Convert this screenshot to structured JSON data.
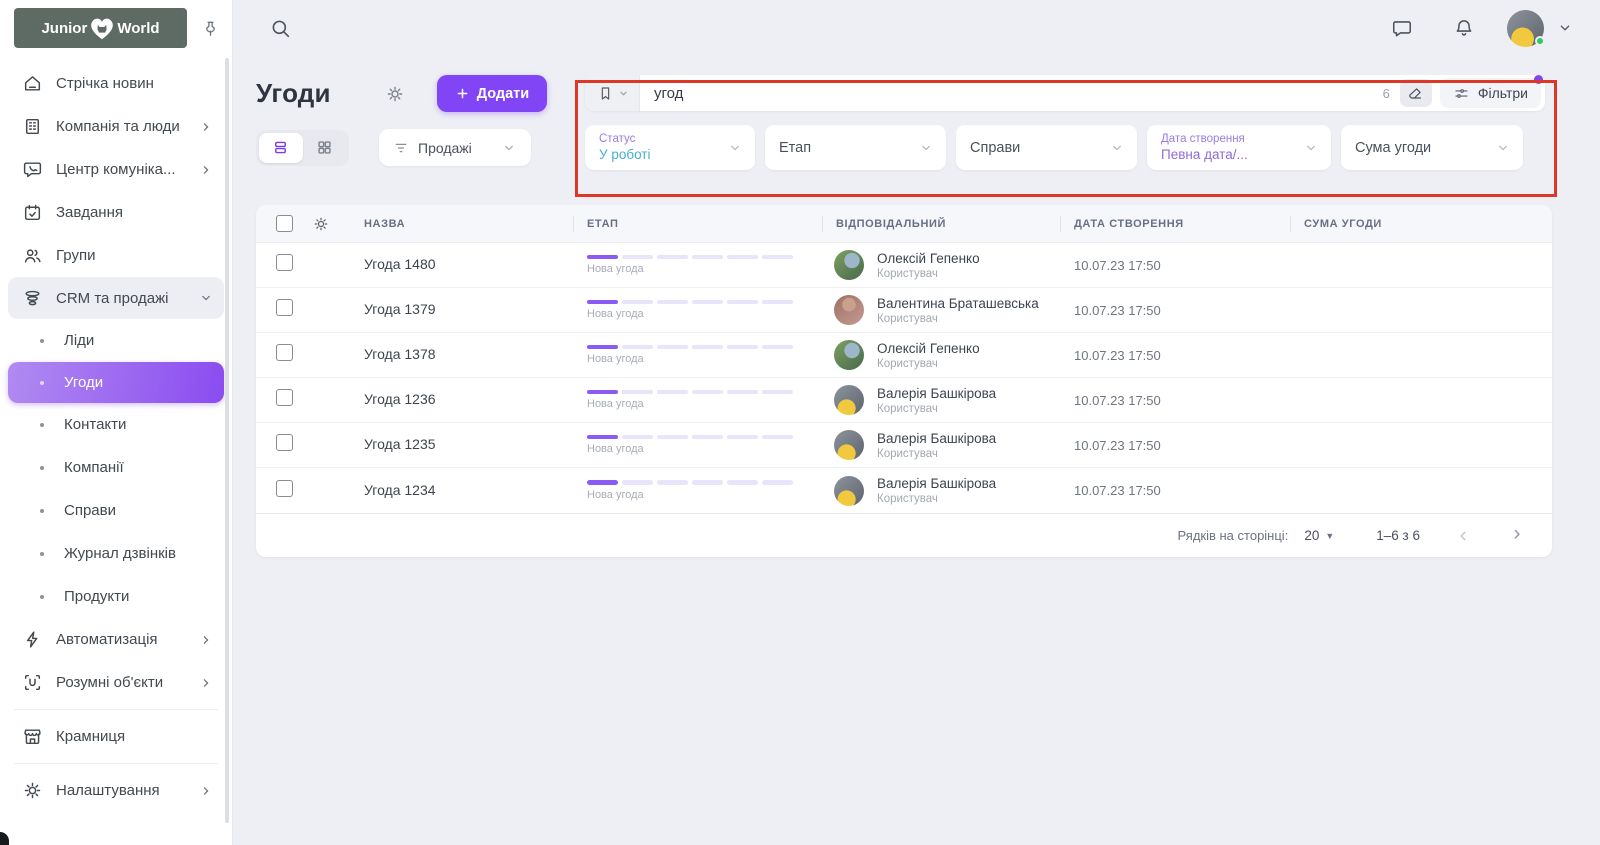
{
  "app": {
    "logo_left": "Junior",
    "logo_right": "World"
  },
  "sidebar": {
    "items": [
      {
        "name": "news-feed",
        "icon": "home-icon",
        "label": "Стрічка новин"
      },
      {
        "name": "company-people",
        "icon": "building-icon",
        "label": "Компанія та люди",
        "chevron": "right"
      },
      {
        "name": "communication-center",
        "icon": "chat-phone-icon",
        "label": "Центр комуніка...",
        "chevron": "right"
      },
      {
        "name": "tasks",
        "icon": "calendar-check-icon",
        "label": "Завдання"
      },
      {
        "name": "groups",
        "icon": "people-icon",
        "label": "Групи"
      },
      {
        "name": "crm-sales",
        "icon": "funnel-stack-icon",
        "label": "CRM та продажі",
        "chevron": "down",
        "expanded": true
      },
      {
        "name": "leads",
        "type": "sub",
        "label": "Ліди"
      },
      {
        "name": "deals",
        "type": "sub",
        "label": "Угоди",
        "active": true
      },
      {
        "name": "contacts",
        "type": "sub",
        "label": "Контакти"
      },
      {
        "name": "companies",
        "type": "sub",
        "label": "Компанії"
      },
      {
        "name": "cases",
        "type": "sub",
        "label": "Справи"
      },
      {
        "name": "call-log",
        "type": "sub",
        "label": "Журнал дзвінків"
      },
      {
        "name": "products",
        "type": "sub",
        "label": "Продукти"
      },
      {
        "name": "automation",
        "icon": "lightning-icon",
        "label": "Автоматизація",
        "chevron": "right"
      },
      {
        "name": "smart-objects",
        "icon": "smart-object-icon",
        "label": "Розумні об'єкти",
        "chevron": "right"
      },
      {
        "type": "divider"
      },
      {
        "name": "store",
        "icon": "storefront-icon",
        "label": "Крамниця"
      },
      {
        "type": "divider"
      },
      {
        "name": "settings",
        "icon": "gear-icon",
        "label": "Налаштування",
        "chevron": "right"
      }
    ]
  },
  "toolbar": {
    "title": "Угоди",
    "add_label": "Додати",
    "view_name": "Продажі"
  },
  "search": {
    "value": "угод",
    "count": "6",
    "filters_label": "Фільтри"
  },
  "filters": {
    "status": {
      "label": "Статус",
      "value": "У роботі"
    },
    "stage": {
      "value": "Етап"
    },
    "cases": {
      "value": "Справи"
    },
    "created": {
      "label": "Дата створення",
      "value": "Певна дата/..."
    },
    "sum": {
      "value": "Сума угоди"
    }
  },
  "table": {
    "columns": {
      "name": "НАЗВА",
      "stage": "ЕТАП",
      "owner": "ВІДПОВІДАЛЬНИЙ",
      "created": "ДАТА СТВОРЕННЯ",
      "sum": "СУМА УГОДИ"
    },
    "rows": [
      {
        "name": "Угода 1480",
        "stage": "Нова угода",
        "stage_index": 1,
        "stage_total": 6,
        "owner": "Олексій Гепенко",
        "role": "Користувач",
        "created": "10.07.23 17:50",
        "sum": "",
        "avatar": "oleksii"
      },
      {
        "name": "Угода 1379",
        "stage": "Нова угода",
        "stage_index": 1,
        "stage_total": 6,
        "owner": "Валентина Браташевська",
        "role": "Користувач",
        "created": "10.07.23 17:50",
        "sum": "",
        "avatar": "valentyna"
      },
      {
        "name": "Угода 1378",
        "stage": "Нова угода",
        "stage_index": 1,
        "stage_total": 6,
        "owner": "Олексій Гепенко",
        "role": "Користувач",
        "created": "10.07.23 17:50",
        "sum": "",
        "avatar": "oleksii"
      },
      {
        "name": "Угода 1236",
        "stage": "Нова угода",
        "stage_index": 1,
        "stage_total": 6,
        "owner": "Валерія Башкірова",
        "role": "Користувач",
        "created": "10.07.23 17:50",
        "sum": "",
        "avatar": "valeriia"
      },
      {
        "name": "Угода 1235",
        "stage": "Нова угода",
        "stage_index": 1,
        "stage_total": 6,
        "owner": "Валерія Башкірова",
        "role": "Користувач",
        "created": "10.07.23 17:50",
        "sum": "",
        "avatar": "valeriia"
      },
      {
        "name": "Угода 1234",
        "stage": "Нова угода",
        "stage_index": 1,
        "stage_total": 6,
        "owner": "Валерія Башкірова",
        "role": "Користувач",
        "created": "10.07.23 17:50",
        "sum": "",
        "avatar": "valeriia"
      }
    ]
  },
  "pagination": {
    "rows_per_page_label": "Рядків на сторінці:",
    "page_size": "20",
    "range": "1–6 з 6"
  },
  "colors": {
    "accent": "#8245f5",
    "annotation_red": "#dd3826",
    "status_teal": "#45b1c9",
    "filter_label_purple": "#9b7ce0",
    "stage_filled": "#8a5cf5"
  }
}
